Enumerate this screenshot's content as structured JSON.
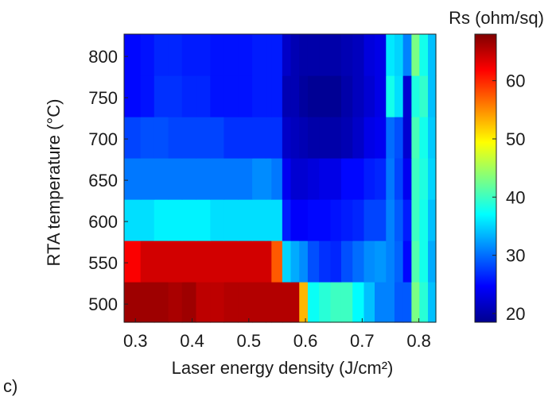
{
  "panel_label": "c)",
  "chart_data": {
    "type": "heatmap",
    "title": "",
    "xlabel": "Laser energy density (J/cm²)",
    "ylabel": "RTA temperature (°C)",
    "colorbar_label": "Rs (ohm/sq)",
    "xlim": [
      0.28,
      0.83
    ],
    "ylim": [
      478,
      827
    ],
    "xticks": [
      "0.3",
      "0.4",
      "0.5",
      "0.6",
      "0.7",
      "0.8"
    ],
    "yticks": [
      "500",
      "550",
      "600",
      "650",
      "700",
      "750",
      "800"
    ],
    "colorbar_ticks": [
      "20",
      "30",
      "40",
      "50",
      "60"
    ],
    "clim": [
      18.5,
      68
    ],
    "colormap": "jet",
    "x_edges": [
      0.28,
      0.309,
      0.333,
      0.358,
      0.382,
      0.407,
      0.432,
      0.456,
      0.481,
      0.506,
      0.53,
      0.54,
      0.559,
      0.574,
      0.589,
      0.604,
      0.624,
      0.644,
      0.663,
      0.683,
      0.703,
      0.722,
      0.742,
      0.757,
      0.772,
      0.787,
      0.801,
      0.816,
      0.83
    ],
    "y_edges": [
      478,
      527,
      577,
      627,
      677,
      727,
      777,
      827
    ],
    "y_rows": [
      "500",
      "550",
      "600",
      "650",
      "700",
      "750",
      "800"
    ],
    "values": [
      [
        66.5,
        66.5,
        66.5,
        66.0,
        66.5,
        65.0,
        65.0,
        65.5,
        65.5,
        65.5,
        65.5,
        65.5,
        65.5,
        65.5,
        53.0,
        37.5,
        39.0,
        40.0,
        40.0,
        37.0,
        34.0,
        31.0,
        31.0,
        29.0,
        29.0,
        43.0,
        39.0,
        34.0
      ],
      [
        62.0,
        64.0,
        64.0,
        64.0,
        64.0,
        64.0,
        64.0,
        64.0,
        64.0,
        64.0,
        64.0,
        57.5,
        35.0,
        33.0,
        31.5,
        28.5,
        27.0,
        26.5,
        28.5,
        30.0,
        31.5,
        32.0,
        31.0,
        29.5,
        25.0,
        41.0,
        38.0,
        33.0
      ],
      [
        35.5,
        35.5,
        36.5,
        36.5,
        36.5,
        36.5,
        35.5,
        35.5,
        35.5,
        35.5,
        35.5,
        35.5,
        26.0,
        24.5,
        24.5,
        25.0,
        25.0,
        25.5,
        26.0,
        26.5,
        28.0,
        28.0,
        31.0,
        29.0,
        26.0,
        40.0,
        38.0,
        34.0
      ],
      [
        30.5,
        30.5,
        30.5,
        30.5,
        30.5,
        30.5,
        30.5,
        30.5,
        30.5,
        31.5,
        31.5,
        30.5,
        24.0,
        22.5,
        22.5,
        23.0,
        23.5,
        23.5,
        25.0,
        25.0,
        26.0,
        26.5,
        30.5,
        28.0,
        24.0,
        40.0,
        38.5,
        35.0
      ],
      [
        28.0,
        28.5,
        28.5,
        28.0,
        28.0,
        28.0,
        28.0,
        27.0,
        27.0,
        27.0,
        27.0,
        27.0,
        22.0,
        21.5,
        21.0,
        20.5,
        20.5,
        20.5,
        21.0,
        22.0,
        23.5,
        24.0,
        30.0,
        28.5,
        22.5,
        40.5,
        38.0,
        34.5
      ],
      [
        25.0,
        25.5,
        27.0,
        27.0,
        26.5,
        26.5,
        25.5,
        25.5,
        25.5,
        26.0,
        26.0,
        26.0,
        21.0,
        21.0,
        20.0,
        19.5,
        19.5,
        19.5,
        20.5,
        21.5,
        22.5,
        23.5,
        38.0,
        35.5,
        22.5,
        38.5,
        39.5,
        34.0
      ],
      [
        25.0,
        25.5,
        26.5,
        26.5,
        26.0,
        26.0,
        25.5,
        25.5,
        25.5,
        26.0,
        26.0,
        26.0,
        22.0,
        21.0,
        20.5,
        20.5,
        20.5,
        20.5,
        21.0,
        21.5,
        23.0,
        23.5,
        36.0,
        35.0,
        31.0,
        43.0,
        38.0,
        34.0
      ]
    ]
  }
}
